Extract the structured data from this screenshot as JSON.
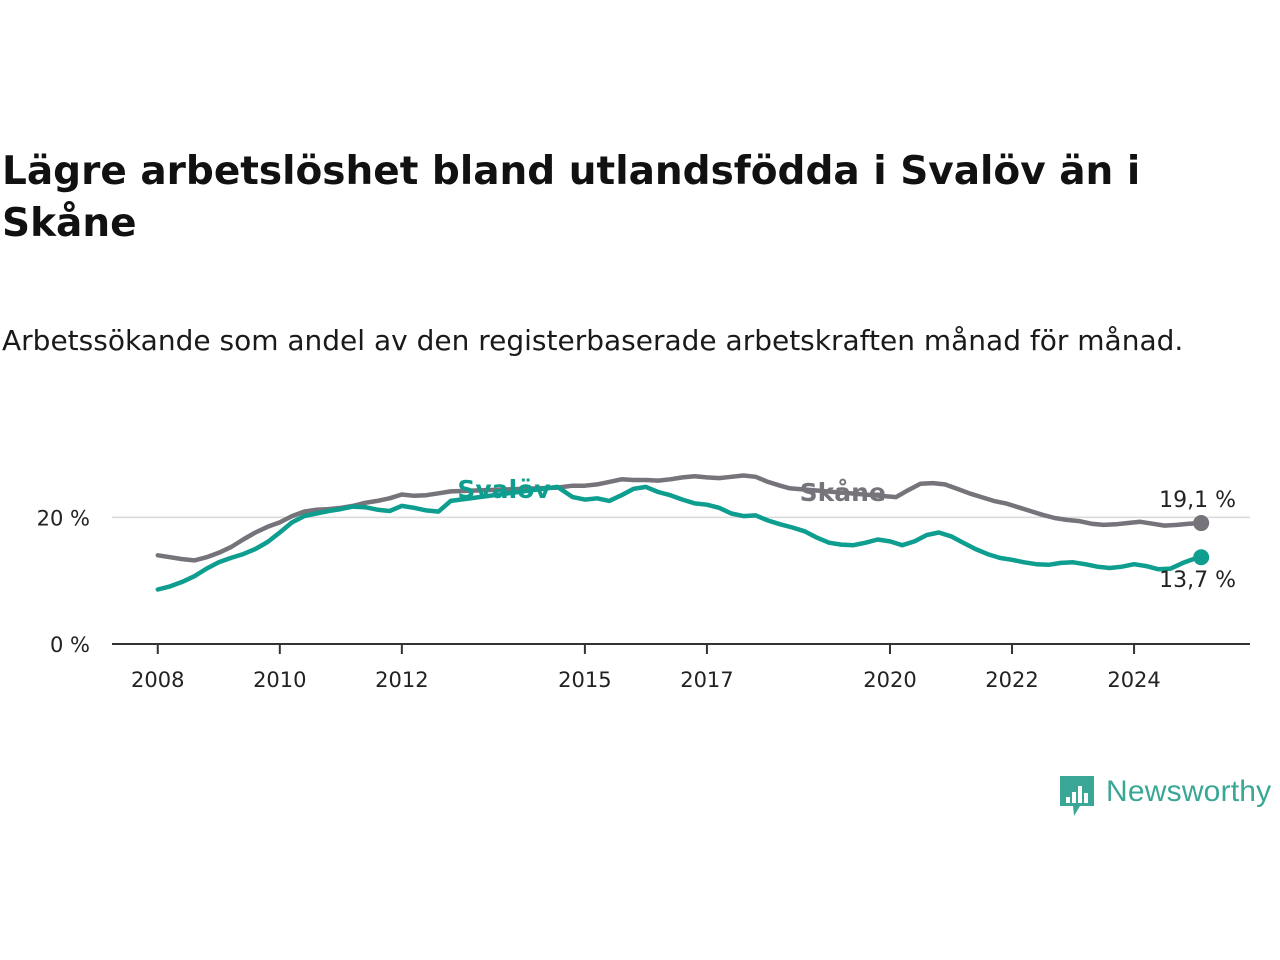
{
  "title": "Lägre arbetslöshet bland utlandsfödda i Svalöv än i Skåne",
  "subtitle": "Arbetssökande som andel av den registerbaserade arbetskraften månad för månad.",
  "logo_text": "Newsworthy",
  "colors": {
    "svalov": "#0e9e8f",
    "skane": "#76737a",
    "grid": "#d9d9d9",
    "axis": "#333333"
  },
  "chart_data": {
    "type": "line",
    "title": "Lägre arbetslöshet bland utlandsfödda i Svalöv än i Skåne",
    "xlabel": "",
    "ylabel": "",
    "x_ticks": [
      2008,
      2010,
      2012,
      2015,
      2017,
      2020,
      2022,
      2024
    ],
    "y_ticks": [
      {
        "value": 0,
        "label": "0 %"
      },
      {
        "value": 20,
        "label": "20 %"
      }
    ],
    "ylim": [
      0,
      30
    ],
    "xlim": [
      2007.25,
      2025.9
    ],
    "grid": "y",
    "series": [
      {
        "name": "Skåne",
        "color": "#76737a",
        "end_label": "19,1 %",
        "points": [
          [
            2008.0,
            14.0
          ],
          [
            2008.2,
            13.7
          ],
          [
            2008.4,
            13.4
          ],
          [
            2008.6,
            13.2
          ],
          [
            2008.8,
            13.7
          ],
          [
            2009.0,
            14.4
          ],
          [
            2009.2,
            15.3
          ],
          [
            2009.4,
            16.5
          ],
          [
            2009.6,
            17.6
          ],
          [
            2009.8,
            18.5
          ],
          [
            2010.0,
            19.2
          ],
          [
            2010.2,
            20.2
          ],
          [
            2010.4,
            20.9
          ],
          [
            2010.6,
            21.2
          ],
          [
            2010.8,
            21.3
          ],
          [
            2011.0,
            21.5
          ],
          [
            2011.2,
            21.8
          ],
          [
            2011.4,
            22.3
          ],
          [
            2011.6,
            22.6
          ],
          [
            2011.8,
            23.0
          ],
          [
            2012.0,
            23.6
          ],
          [
            2012.2,
            23.4
          ],
          [
            2012.4,
            23.5
          ],
          [
            2012.6,
            23.8
          ],
          [
            2012.8,
            24.1
          ],
          [
            2014.55,
            24.7
          ],
          [
            2014.8,
            25.0
          ],
          [
            2015.0,
            25.0
          ],
          [
            2015.2,
            25.2
          ],
          [
            2015.4,
            25.6
          ],
          [
            2015.6,
            26.0
          ],
          [
            2015.8,
            25.9
          ],
          [
            2016.0,
            25.9
          ],
          [
            2016.2,
            25.8
          ],
          [
            2016.4,
            26.0
          ],
          [
            2016.6,
            26.3
          ],
          [
            2016.8,
            26.5
          ],
          [
            2017.0,
            26.3
          ],
          [
            2017.2,
            26.2
          ],
          [
            2017.4,
            26.4
          ],
          [
            2017.6,
            26.6
          ],
          [
            2017.8,
            26.4
          ],
          [
            2018.0,
            25.6
          ],
          [
            2018.2,
            25.0
          ],
          [
            2018.35,
            24.6
          ],
          [
            2020.1,
            23.2
          ],
          [
            2020.3,
            24.3
          ],
          [
            2020.5,
            25.3
          ],
          [
            2020.7,
            25.4
          ],
          [
            2020.9,
            25.2
          ],
          [
            2021.1,
            24.5
          ],
          [
            2021.3,
            23.8
          ],
          [
            2021.5,
            23.2
          ],
          [
            2021.7,
            22.6
          ],
          [
            2021.9,
            22.2
          ],
          [
            2022.1,
            21.6
          ],
          [
            2022.3,
            21.0
          ],
          [
            2022.5,
            20.4
          ],
          [
            2022.7,
            19.9
          ],
          [
            2022.9,
            19.6
          ],
          [
            2023.1,
            19.4
          ],
          [
            2023.3,
            19.0
          ],
          [
            2023.5,
            18.8
          ],
          [
            2023.7,
            18.9
          ],
          [
            2023.9,
            19.1
          ],
          [
            2024.1,
            19.3
          ],
          [
            2024.3,
            19.0
          ],
          [
            2024.5,
            18.7
          ],
          [
            2024.7,
            18.8
          ],
          [
            2024.9,
            19.0
          ],
          [
            2025.1,
            19.1
          ]
        ]
      },
      {
        "name": "Svalöv",
        "color": "#0e9e8f",
        "end_label": "13,7 %",
        "points": [
          [
            2008.0,
            8.6
          ],
          [
            2008.2,
            9.1
          ],
          [
            2008.4,
            9.8
          ],
          [
            2008.6,
            10.7
          ],
          [
            2008.8,
            11.9
          ],
          [
            2009.0,
            12.9
          ],
          [
            2009.2,
            13.6
          ],
          [
            2009.4,
            14.2
          ],
          [
            2009.6,
            15.0
          ],
          [
            2009.8,
            16.1
          ],
          [
            2010.0,
            17.6
          ],
          [
            2010.2,
            19.2
          ],
          [
            2010.4,
            20.2
          ],
          [
            2010.6,
            20.6
          ],
          [
            2010.8,
            21.0
          ],
          [
            2011.0,
            21.3
          ],
          [
            2011.2,
            21.7
          ],
          [
            2011.4,
            21.6
          ],
          [
            2011.6,
            21.2
          ],
          [
            2011.8,
            21.0
          ],
          [
            2012.0,
            21.8
          ],
          [
            2012.2,
            21.5
          ],
          [
            2012.4,
            21.1
          ],
          [
            2012.6,
            20.9
          ],
          [
            2012.8,
            22.6
          ],
          [
            2014.55,
            24.8
          ],
          [
            2014.8,
            23.2
          ],
          [
            2015.0,
            22.8
          ],
          [
            2015.2,
            23.0
          ],
          [
            2015.4,
            22.6
          ],
          [
            2015.6,
            23.5
          ],
          [
            2015.8,
            24.5
          ],
          [
            2016.0,
            24.8
          ],
          [
            2016.2,
            24.0
          ],
          [
            2016.4,
            23.5
          ],
          [
            2016.6,
            22.8
          ],
          [
            2016.8,
            22.2
          ],
          [
            2017.0,
            22.0
          ],
          [
            2017.2,
            21.5
          ],
          [
            2017.4,
            20.6
          ],
          [
            2017.6,
            20.2
          ],
          [
            2017.8,
            20.3
          ],
          [
            2018.0,
            19.5
          ],
          [
            2018.2,
            18.9
          ],
          [
            2018.4,
            18.4
          ],
          [
            2018.6,
            17.8
          ],
          [
            2018.8,
            16.8
          ],
          [
            2019.0,
            16.0
          ],
          [
            2019.2,
            15.7
          ],
          [
            2019.4,
            15.6
          ],
          [
            2019.6,
            16.0
          ],
          [
            2019.8,
            16.5
          ],
          [
            2020.0,
            16.2
          ],
          [
            2020.2,
            15.6
          ],
          [
            2020.4,
            16.2
          ],
          [
            2020.6,
            17.2
          ],
          [
            2020.8,
            17.6
          ],
          [
            2021.0,
            17.0
          ],
          [
            2021.2,
            16.0
          ],
          [
            2021.4,
            15.0
          ],
          [
            2021.6,
            14.2
          ],
          [
            2021.8,
            13.6
          ],
          [
            2022.0,
            13.3
          ],
          [
            2022.2,
            12.9
          ],
          [
            2022.4,
            12.6
          ],
          [
            2022.6,
            12.5
          ],
          [
            2022.8,
            12.8
          ],
          [
            2023.0,
            12.9
          ],
          [
            2023.2,
            12.6
          ],
          [
            2023.4,
            12.2
          ],
          [
            2023.6,
            12.0
          ],
          [
            2023.8,
            12.2
          ],
          [
            2024.0,
            12.6
          ],
          [
            2024.2,
            12.3
          ],
          [
            2024.4,
            11.8
          ],
          [
            2024.6,
            11.9
          ],
          [
            2024.8,
            12.8
          ],
          [
            2025.0,
            13.5
          ],
          [
            2025.1,
            13.7
          ]
        ]
      }
    ]
  }
}
